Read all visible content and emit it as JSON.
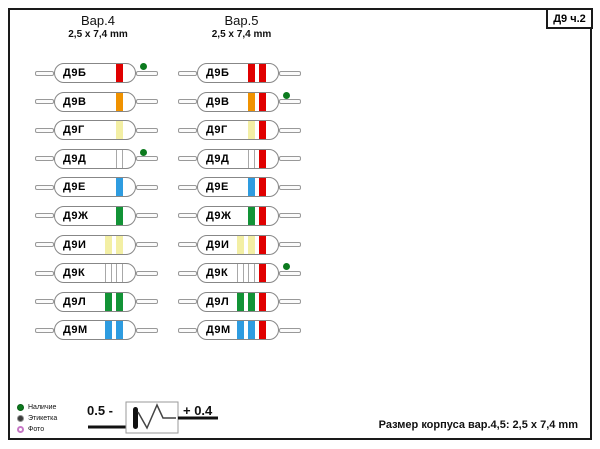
{
  "page": {
    "corner_label": "Д9 ч.2",
    "footer_note": "Размер корпуса вар.4,5: 2,5 x 7,4 mm"
  },
  "palette": {
    "red": "#e00000",
    "orange": "#f09200",
    "yellow": "#f3efa4",
    "white": "#ffffff",
    "blue": "#2e9ce0",
    "green": "#129336",
    "dot_green": "#0c7a1e"
  },
  "columns": [
    {
      "title": "Вар.4",
      "subtitle": "2,5 x 7,4 mm",
      "diodes": [
        {
          "label": "Д9Б",
          "bands": [
            "red"
          ],
          "dot": true
        },
        {
          "label": "Д9В",
          "bands": [
            "orange"
          ],
          "dot": false
        },
        {
          "label": "Д9Г",
          "bands": [
            "yellow"
          ],
          "dot": false
        },
        {
          "label": "Д9Д",
          "bands": [
            "white"
          ],
          "dot": true
        },
        {
          "label": "Д9Е",
          "bands": [
            "blue"
          ],
          "dot": false
        },
        {
          "label": "Д9Ж",
          "bands": [
            "green"
          ],
          "dot": false
        },
        {
          "label": "Д9И",
          "bands": [
            "yellow",
            "yellow"
          ],
          "dot": false
        },
        {
          "label": "Д9К",
          "bands": [
            "white",
            "white"
          ],
          "dot": false
        },
        {
          "label": "Д9Л",
          "bands": [
            "green",
            "green"
          ],
          "dot": false
        },
        {
          "label": "Д9М",
          "bands": [
            "blue",
            "blue"
          ],
          "dot": false
        }
      ]
    },
    {
      "title": "Вар.5",
      "subtitle": "2,5 x 7,4 mm",
      "diodes": [
        {
          "label": "Д9Б",
          "bands": [
            "red",
            "red"
          ],
          "dot": false
        },
        {
          "label": "Д9В",
          "bands": [
            "orange",
            "red"
          ],
          "dot": true
        },
        {
          "label": "Д9Г",
          "bands": [
            "yellow",
            "red"
          ],
          "dot": false
        },
        {
          "label": "Д9Д",
          "bands": [
            "white",
            "red"
          ],
          "dot": false
        },
        {
          "label": "Д9Е",
          "bands": [
            "blue",
            "red"
          ],
          "dot": false
        },
        {
          "label": "Д9Ж",
          "bands": [
            "green",
            "red"
          ],
          "dot": false
        },
        {
          "label": "Д9И",
          "bands": [
            "yellow",
            "yellow",
            "red"
          ],
          "dot": false
        },
        {
          "label": "Д9К",
          "bands": [
            "white",
            "white",
            "red"
          ],
          "dot": true
        },
        {
          "label": "Д9Л",
          "bands": [
            "green",
            "green",
            "red"
          ],
          "dot": false
        },
        {
          "label": "Д9М",
          "bands": [
            "blue",
            "blue",
            "red"
          ],
          "dot": false
        }
      ]
    }
  ],
  "legend": {
    "items": [
      {
        "label": "Наличие",
        "marker": "filled-green"
      },
      {
        "label": "Этикетка",
        "marker": "dark-ring"
      },
      {
        "label": "Фото",
        "marker": "pink-ring"
      }
    ]
  },
  "polarity_diagram": {
    "left_text": "0.5 -",
    "right_text": "+ 0.4"
  }
}
